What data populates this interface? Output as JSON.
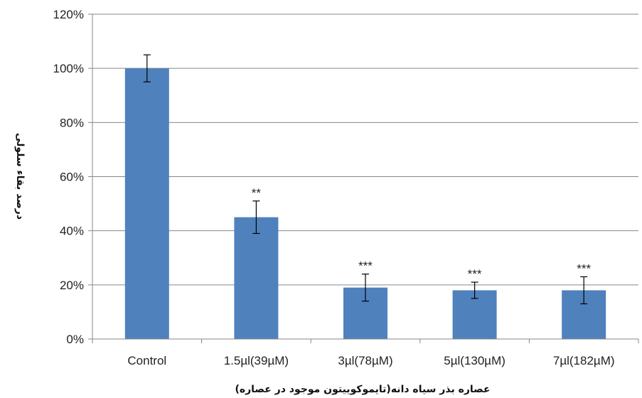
{
  "chart_data": {
    "type": "bar",
    "categories": [
      "Control",
      "1.5µl(39µM)",
      "3µl(78µM)",
      "5µl(130µM)",
      "7µl(182µM)"
    ],
    "values": [
      100,
      45,
      19,
      18,
      18
    ],
    "error_bars": [
      5,
      6,
      5,
      3,
      5
    ],
    "significance": [
      "",
      "**",
      "***",
      "***",
      "***"
    ],
    "ylim": [
      0,
      120
    ],
    "yticks": [
      0,
      20,
      40,
      60,
      80,
      100,
      120
    ],
    "ytick_labels": [
      "0%",
      "20%",
      "40%",
      "60%",
      "80%",
      "100%",
      "120%"
    ],
    "xlabel": "عصاره بذر سیاه دانه(تایموکوییتون موجود در عصاره)",
    "ylabel": "درصد بقاء سلولی",
    "grid": true,
    "bar_color": "#4F81BD"
  }
}
